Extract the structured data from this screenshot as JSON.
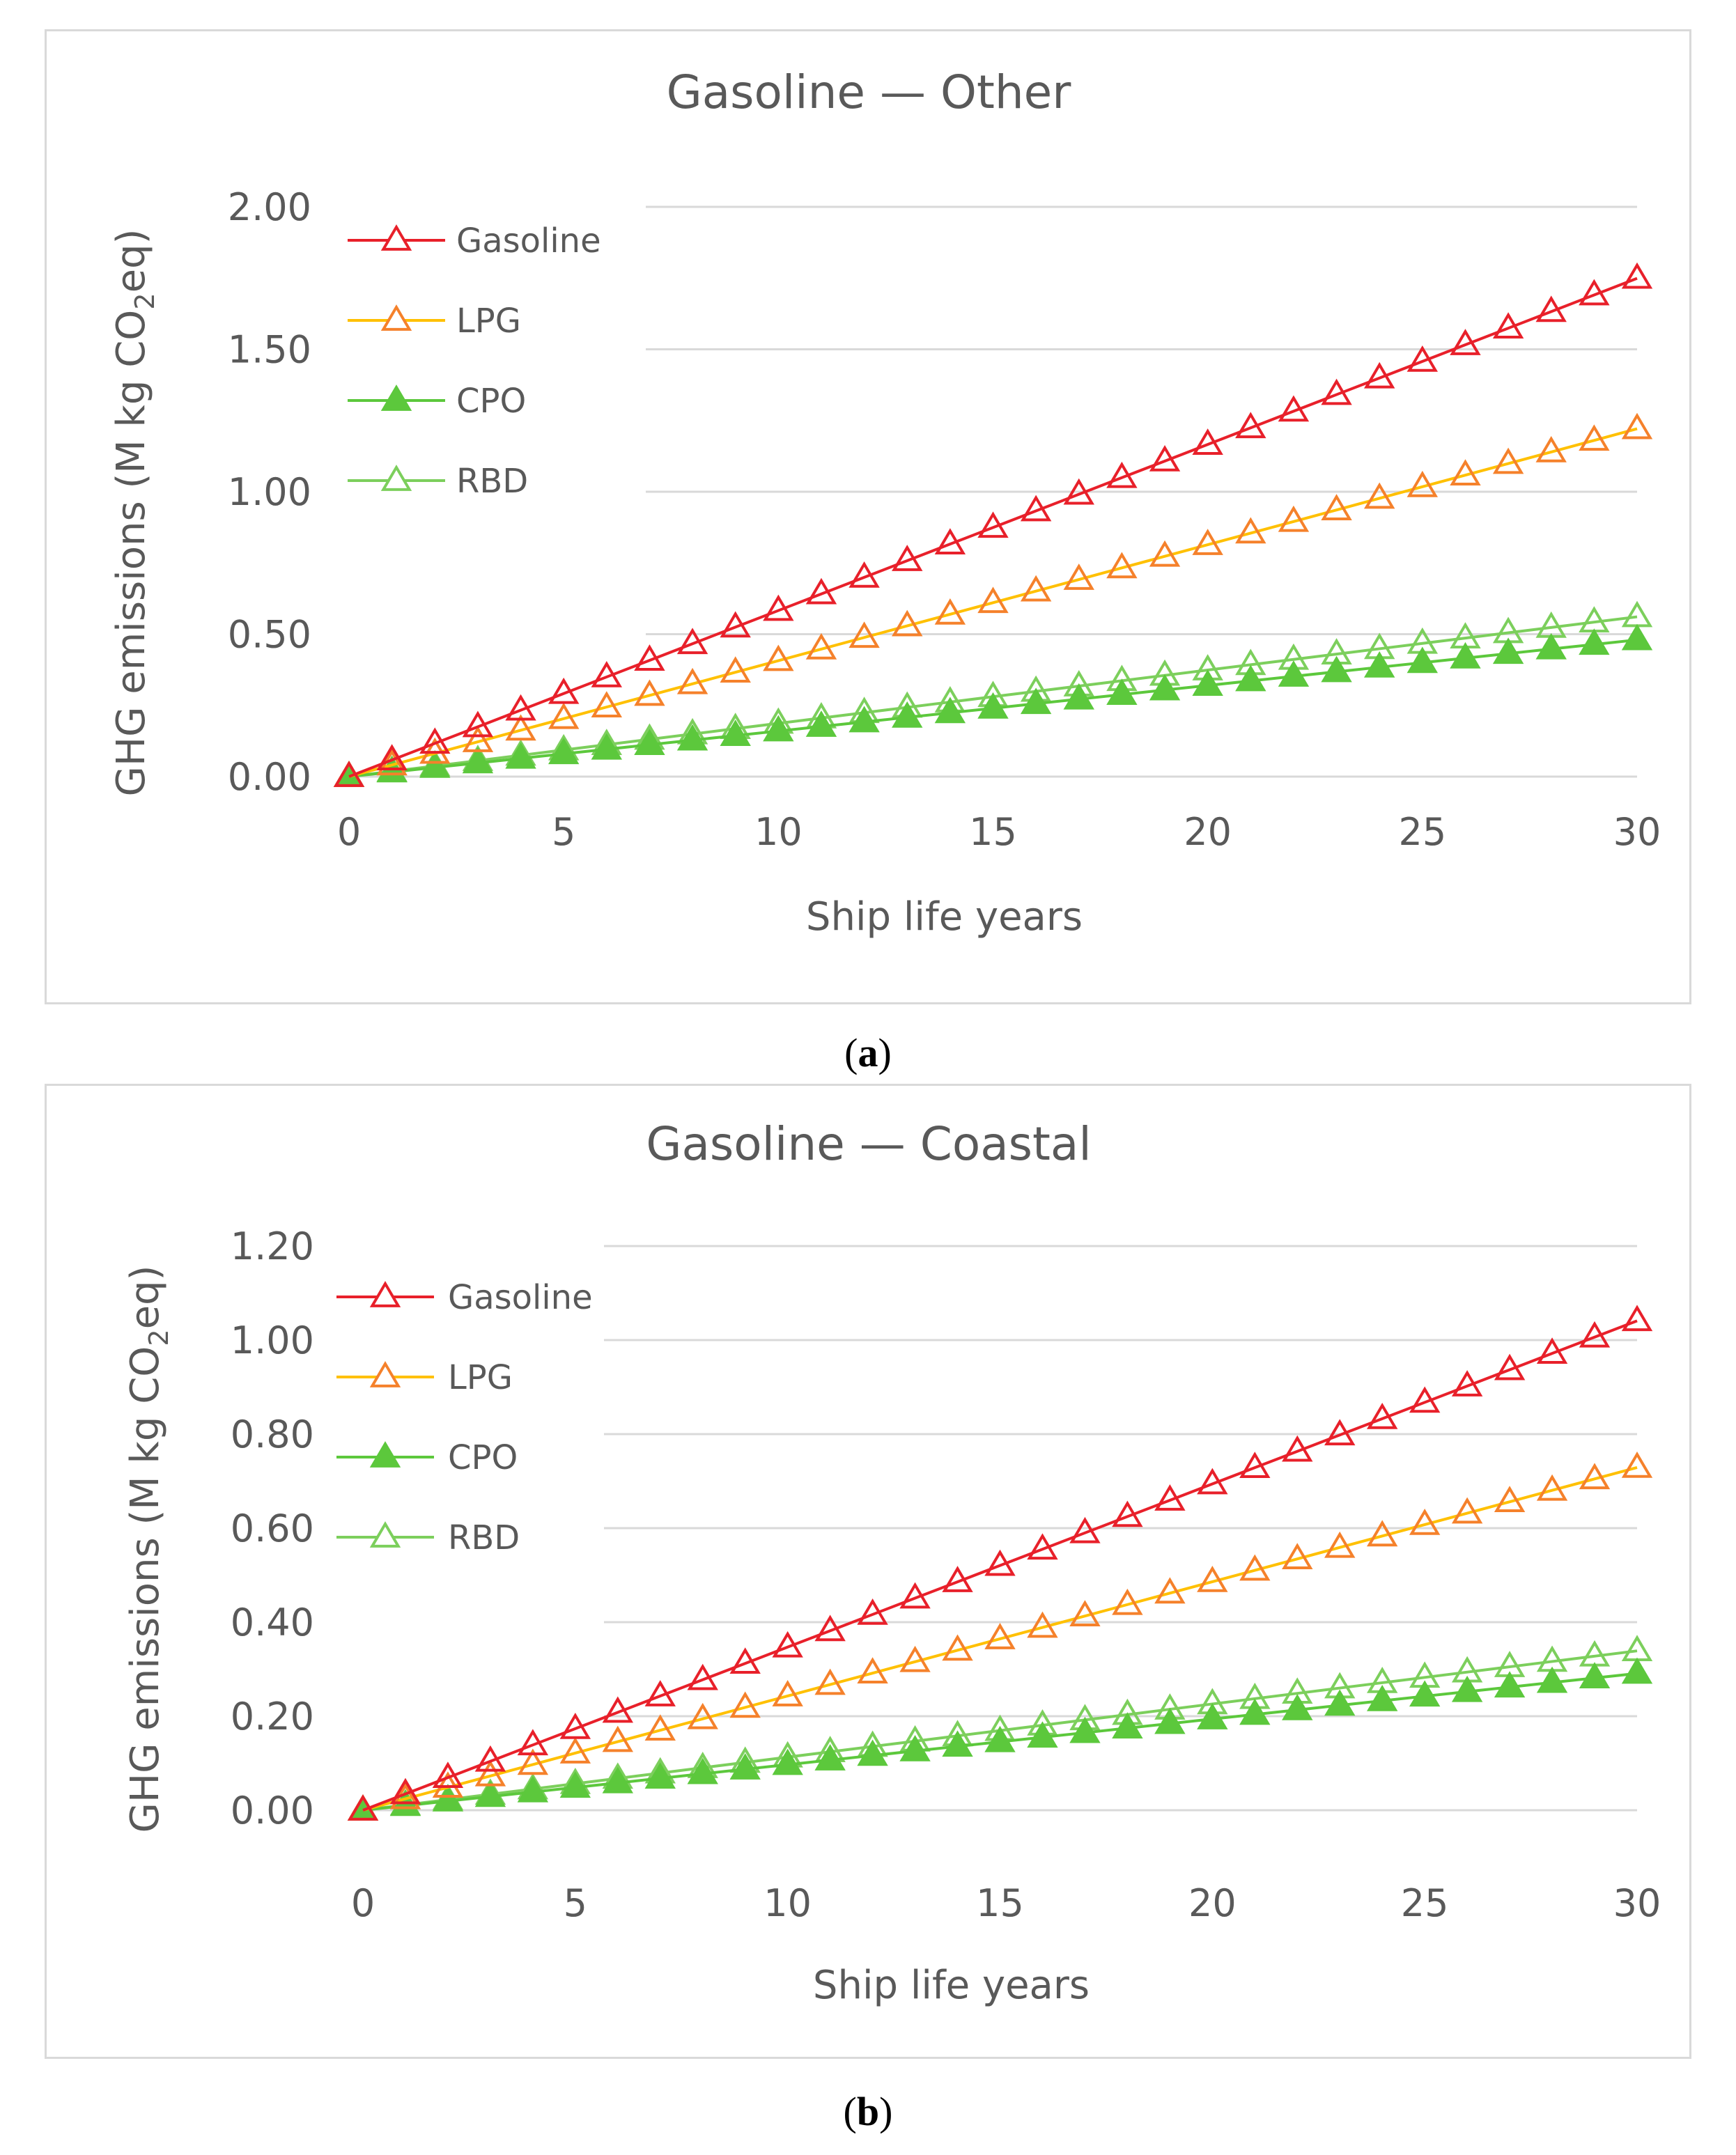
{
  "colors": {
    "Gasoline": "#e8202a",
    "Gasoline_marker": "#e8202a",
    "LPG": "#ffc000",
    "LPG_marker": "#f5812b",
    "CPO": "#5cc83c",
    "CPO_marker": "#5cc83c",
    "RBD": "#7ccf5c",
    "RBD_marker": "#7ccf5c",
    "grid": "#d9d9d9",
    "text": "#595959"
  },
  "chart_data": [
    {
      "type": "line",
      "title": "Gasoline — Other",
      "caption": "(a)",
      "caption_letter": "a",
      "xlabel": "Ship life years",
      "ylabel": "GHG emissions (M kg CO₂eq)",
      "ylabel_parts": [
        "GHG emissions (M kg CO",
        "2",
        "eq)"
      ],
      "xlim": [
        0,
        30
      ],
      "ylim": [
        0,
        2
      ],
      "xticks": [
        0,
        5,
        10,
        15,
        20,
        25,
        30
      ],
      "yticks": [
        "0.00",
        "0.50",
        "1.00",
        "1.50",
        "2.00"
      ],
      "ytick_values": [
        0,
        0.5,
        1.0,
        1.5,
        2.0
      ],
      "grid": true,
      "legend_position": "top-left",
      "x": [
        0,
        1,
        2,
        3,
        4,
        5,
        6,
        7,
        8,
        9,
        10,
        11,
        12,
        13,
        14,
        15,
        16,
        17,
        18,
        19,
        20,
        21,
        22,
        23,
        24,
        25,
        26,
        27,
        28,
        29,
        30
      ],
      "series": [
        {
          "name": "Gasoline",
          "marker": "open-triangle",
          "slope": 0.0583,
          "values_at": {
            "0": 0,
            "10": 0.58,
            "20": 1.17,
            "30": 1.75
          }
        },
        {
          "name": "LPG",
          "marker": "open-triangle",
          "slope": 0.0407,
          "values_at": {
            "0": 0,
            "10": 0.41,
            "20": 0.81,
            "30": 1.22
          }
        },
        {
          "name": "CPO",
          "marker": "filled-triangle",
          "slope": 0.016,
          "values_at": {
            "0": 0,
            "10": 0.16,
            "20": 0.32,
            "30": 0.48
          }
        },
        {
          "name": "RBD",
          "marker": "open-triangle",
          "slope": 0.0187,
          "values_at": {
            "0": 0,
            "10": 0.19,
            "20": 0.37,
            "30": 0.56
          }
        }
      ]
    },
    {
      "type": "line",
      "title": "Gasoline — Coastal",
      "caption": "(b)",
      "caption_letter": "b",
      "xlabel": "Ship life years",
      "ylabel": "GHG emissions (M kg CO₂eq)",
      "ylabel_parts": [
        "GHG emissions (M kg CO",
        "2",
        "eq)"
      ],
      "xlim": [
        0,
        30
      ],
      "ylim": [
        0,
        1.2
      ],
      "xticks": [
        0,
        5,
        10,
        15,
        20,
        25,
        30
      ],
      "yticks": [
        "0.00",
        "0.20",
        "0.40",
        "0.60",
        "0.80",
        "1.00",
        "1.20"
      ],
      "ytick_values": [
        0,
        0.2,
        0.4,
        0.6,
        0.8,
        1.0,
        1.2
      ],
      "grid": true,
      "legend_position": "top-left",
      "x": [
        0,
        1,
        2,
        3,
        4,
        5,
        6,
        7,
        8,
        9,
        10,
        11,
        12,
        13,
        14,
        15,
        16,
        17,
        18,
        19,
        20,
        21,
        22,
        23,
        24,
        25,
        26,
        27,
        28,
        29,
        30
      ],
      "series": [
        {
          "name": "Gasoline",
          "marker": "open-triangle",
          "slope": 0.0347,
          "values_at": {
            "0": 0,
            "10": 0.35,
            "20": 0.69,
            "30": 1.04
          }
        },
        {
          "name": "LPG",
          "marker": "open-triangle",
          "slope": 0.0243,
          "values_at": {
            "0": 0,
            "10": 0.24,
            "20": 0.49,
            "30": 0.73
          }
        },
        {
          "name": "CPO",
          "marker": "filled-triangle",
          "slope": 0.0097,
          "values_at": {
            "0": 0,
            "10": 0.1,
            "20": 0.19,
            "30": 0.29
          }
        },
        {
          "name": "RBD",
          "marker": "open-triangle",
          "slope": 0.0113,
          "values_at": {
            "0": 0,
            "10": 0.11,
            "20": 0.23,
            "30": 0.34
          }
        }
      ]
    }
  ]
}
